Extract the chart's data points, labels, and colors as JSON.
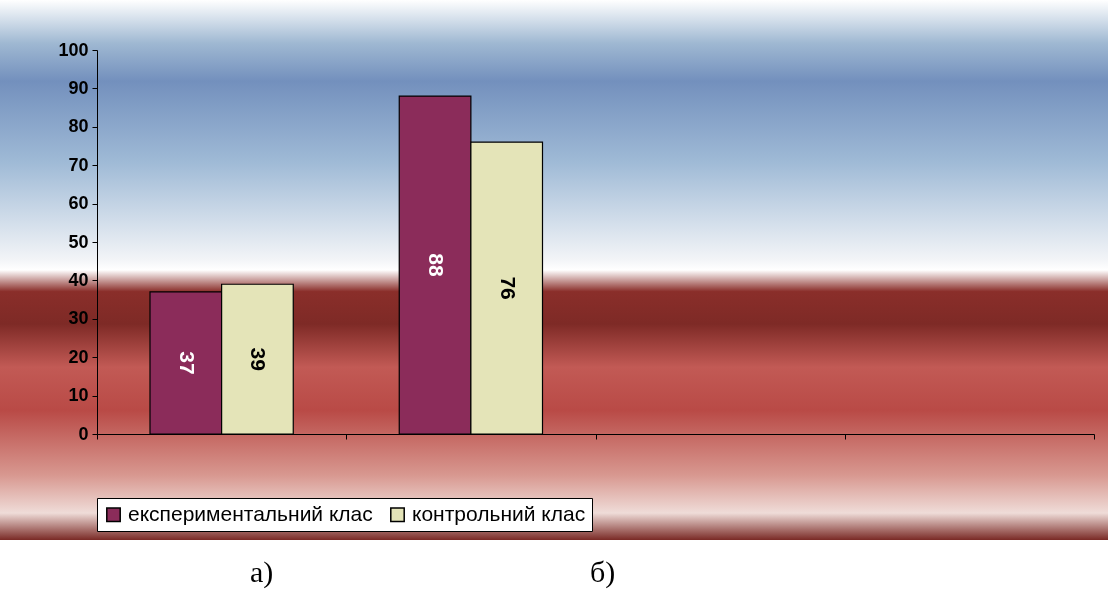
{
  "chart_data": {
    "type": "bar",
    "categories": [
      null,
      null,
      null,
      null
    ],
    "series": [
      {
        "name": "експериментальний клас",
        "color": "#8b2c5a",
        "values": [
          37,
          88,
          null,
          null
        ]
      },
      {
        "name": "контрольний клас",
        "color": "#e4e4b8",
        "values": [
          39,
          76,
          null,
          null
        ]
      }
    ],
    "ylim": [
      0,
      100
    ],
    "yticks": [
      0,
      10,
      20,
      30,
      40,
      50,
      60,
      70,
      80,
      90,
      100
    ],
    "data_labels": true,
    "legend": "bottom",
    "grid": false,
    "annotations": [
      "а)",
      "б)"
    ]
  }
}
